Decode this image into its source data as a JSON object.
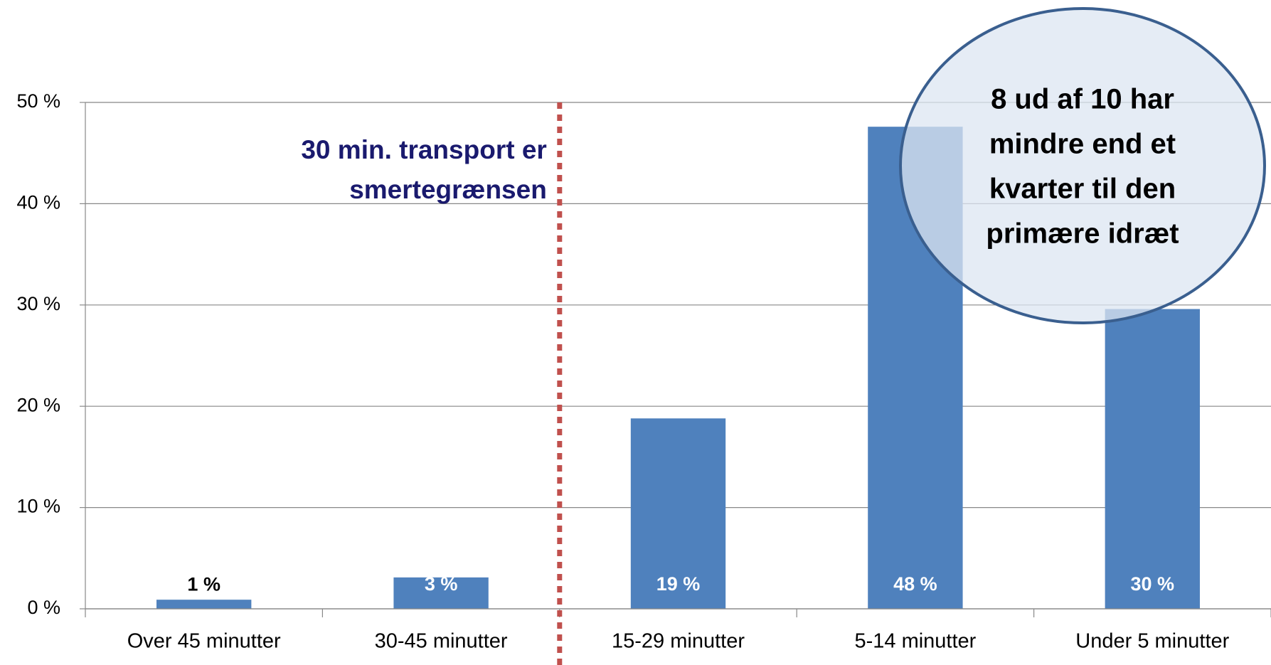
{
  "chart_data": {
    "type": "bar",
    "categories": [
      "Over 45 minutter",
      "30-45 minutter",
      "15-29 minutter",
      "5-14 minutter",
      "Under 5 minutter"
    ],
    "values": [
      0.9,
      3.1,
      18.8,
      47.6,
      29.6
    ],
    "value_labels": [
      "1 %",
      "3 %",
      "19 %",
      "48 %",
      "30 %"
    ],
    "color": "#4f81bd",
    "ylim": [
      0,
      50
    ],
    "yticks": [
      {
        "value": 0,
        "label": "0 %"
      },
      {
        "value": 10,
        "label": "10 %"
      },
      {
        "value": 20,
        "label": "20 %"
      },
      {
        "value": 30,
        "label": "30 %"
      },
      {
        "value": 40,
        "label": "40 %"
      },
      {
        "value": 50,
        "label": "50 %"
      }
    ],
    "grid": true,
    "annotations": [
      {
        "lines": [
          "30 min. transport er",
          "smertegrænsen"
        ]
      },
      {
        "lines": [
          "8 ud af 10 har",
          "mindre end et",
          "kvarter til den",
          "primære idræt"
        ]
      }
    ]
  }
}
